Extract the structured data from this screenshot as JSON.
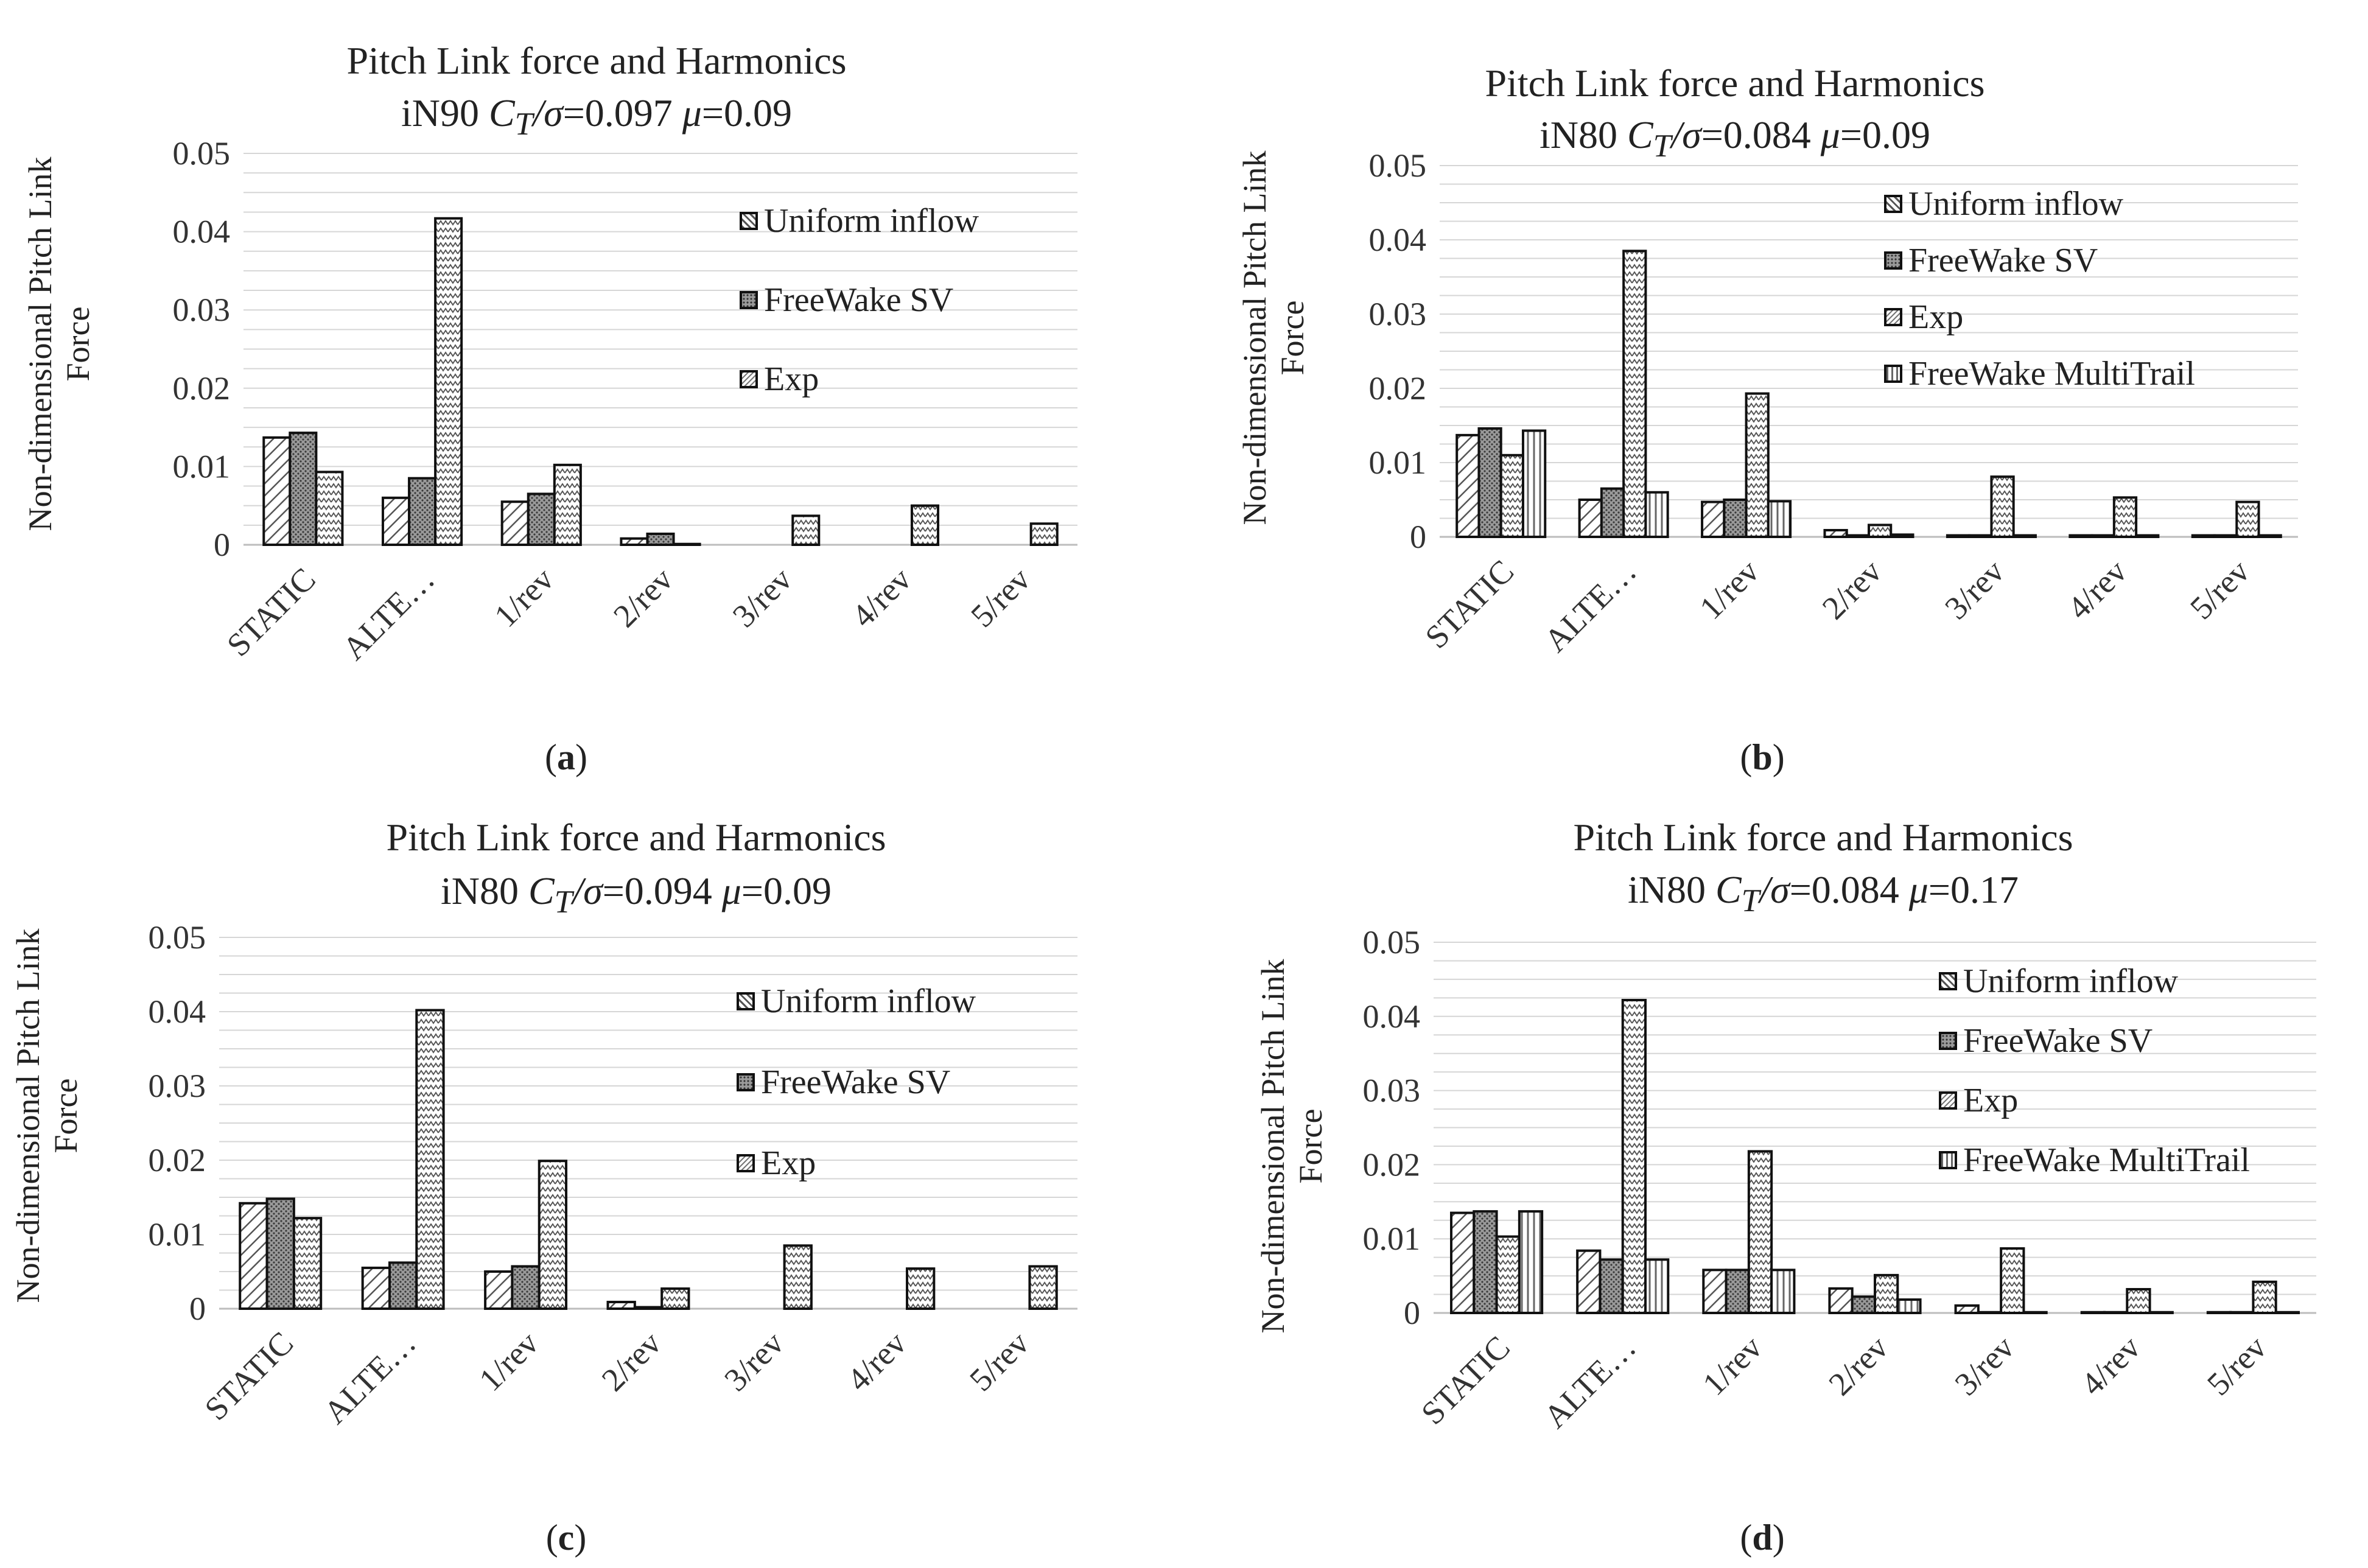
{
  "colors": {
    "grid": "#d6d6d6",
    "axis": "#bdbdbd",
    "bar_stroke": "#111111",
    "text": "#333333"
  },
  "panels": [
    {
      "caption": "a",
      "title": "Pitch Link force and Harmonics",
      "subtitle_pre": "iN90",
      "subtitle_ct": "C",
      "subtitle_sub": "T",
      "subtitle_sigma": "/σ",
      "subtitle_ct_val": "=0.097",
      "subtitle_mu": "μ",
      "subtitle_mu_val": "=0.09",
      "ylabel_line1": "Non-dimensional Pitch Link",
      "ylabel_line2": "Force",
      "legend": [
        "Uniform inflow",
        "FreeWake SV",
        "Exp"
      ]
    },
    {
      "caption": "b",
      "title": "Pitch Link force and Harmonics",
      "subtitle_pre": "iN80",
      "subtitle_ct": "C",
      "subtitle_sub": "T",
      "subtitle_sigma": "/σ",
      "subtitle_ct_val": "=0.084",
      "subtitle_mu": "μ",
      "subtitle_mu_val": "=0.09",
      "ylabel_line1": "Non-dimensional Pitch Link",
      "ylabel_line2": "Force",
      "legend": [
        "Uniform inflow",
        "FreeWake SV",
        "Exp",
        "FreeWake MultiTrail"
      ]
    },
    {
      "caption": "c",
      "title": "Pitch Link force and Harmonics",
      "subtitle_pre": "iN80",
      "subtitle_ct": "C",
      "subtitle_sub": "T",
      "subtitle_sigma": "/σ",
      "subtitle_ct_val": "=0.094",
      "subtitle_mu": "μ",
      "subtitle_mu_val": "=0.09",
      "ylabel_line1": "Non-dimensional Pitch Link",
      "ylabel_line2": "Force",
      "legend": [
        "Uniform inflow",
        "FreeWake SV",
        "Exp"
      ]
    },
    {
      "caption": "d",
      "title": "Pitch Link force and Harmonics",
      "subtitle_pre": "iN80",
      "subtitle_ct": "C",
      "subtitle_sub": "T",
      "subtitle_sigma": "/σ",
      "subtitle_ct_val": "=0.084",
      "subtitle_mu": "μ",
      "subtitle_mu_val": "=0.17",
      "ylabel_line1": "Non-dimensional Pitch Link",
      "ylabel_line2": "Force",
      "legend": [
        "Uniform inflow",
        "FreeWake SV",
        "Exp",
        "FreeWake MultiTrail"
      ]
    }
  ],
  "chart_data": [
    {
      "type": "bar",
      "title": "Pitch Link force and Harmonics — iN90 CT/σ=0.097 μ=0.09",
      "ylabel": "Non-dimensional Pitch Link Force",
      "ylim": [
        0,
        0.05
      ],
      "yticks": [
        "0",
        "0.01",
        "0.02",
        "0.03",
        "0.04",
        "0.05"
      ],
      "categories": [
        "STATIC",
        "ALTE…",
        "1/rev",
        "2/rev",
        "3/rev",
        "4/rev",
        "5/rev"
      ],
      "series": [
        {
          "name": "Uniform inflow",
          "pattern": "diag",
          "values": [
            0.0137,
            0.006,
            0.0055,
            0.0008,
            0.0,
            0.0,
            0.0
          ]
        },
        {
          "name": "FreeWake SV",
          "pattern": "dots",
          "values": [
            0.0143,
            0.0085,
            0.0065,
            0.0014,
            0.0,
            0.0,
            0.0
          ]
        },
        {
          "name": "Exp",
          "pattern": "zigzag",
          "values": [
            0.0093,
            0.0417,
            0.0102,
            0.0001,
            0.0037,
            0.005,
            0.0027
          ]
        }
      ]
    },
    {
      "type": "bar",
      "title": "Pitch Link force and Harmonics — iN80 CT/σ=0.084 μ=0.09",
      "ylabel": "Non-dimensional Pitch Link Force",
      "ylim": [
        0,
        0.05
      ],
      "yticks": [
        "0",
        "0.01",
        "0.02",
        "0.03",
        "0.04",
        "0.05"
      ],
      "categories": [
        "STATIC",
        "ALTE…",
        "1/rev",
        "2/rev",
        "3/rev",
        "4/rev",
        "5/rev"
      ],
      "series": [
        {
          "name": "Uniform inflow",
          "pattern": "diag",
          "values": [
            0.0137,
            0.005,
            0.0047,
            0.0009,
            0.0002,
            0.0002,
            0.0002
          ]
        },
        {
          "name": "FreeWake SV",
          "pattern": "dots",
          "values": [
            0.0146,
            0.0065,
            0.005,
            0.0002,
            0.0002,
            0.0002,
            0.0002
          ]
        },
        {
          "name": "Exp",
          "pattern": "zigzag",
          "values": [
            0.011,
            0.0385,
            0.0193,
            0.0016,
            0.0081,
            0.0053,
            0.0047
          ]
        },
        {
          "name": "FreeWake MultiTrail",
          "pattern": "hatch",
          "values": [
            0.0143,
            0.006,
            0.0048,
            0.0003,
            0.0002,
            0.0002,
            0.0002
          ]
        }
      ]
    },
    {
      "type": "bar",
      "title": "Pitch Link force and Harmonics — iN80 CT/σ=0.094 μ=0.09",
      "ylabel": "Non-dimensional Pitch Link Force",
      "ylim": [
        0,
        0.05
      ],
      "yticks": [
        "0",
        "0.01",
        "0.02",
        "0.03",
        "0.04",
        "0.05"
      ],
      "categories": [
        "STATIC",
        "ALTE…",
        "1/rev",
        "2/rev",
        "3/rev",
        "4/rev",
        "5/rev"
      ],
      "series": [
        {
          "name": "Uniform inflow",
          "pattern": "diag",
          "values": [
            0.0142,
            0.0055,
            0.005,
            0.0009,
            0.0,
            0.0,
            0.0
          ]
        },
        {
          "name": "FreeWake SV",
          "pattern": "dots",
          "values": [
            0.0148,
            0.0062,
            0.0057,
            0.0002,
            0.0,
            0.0,
            0.0
          ]
        },
        {
          "name": "Exp",
          "pattern": "zigzag",
          "values": [
            0.0122,
            0.0402,
            0.0199,
            0.0027,
            0.0085,
            0.0054,
            0.0057
          ]
        }
      ]
    },
    {
      "type": "bar",
      "title": "Pitch Link force and Harmonics — iN80 CT/σ=0.084 μ=0.17",
      "ylabel": "Non-dimensional Pitch Link Force",
      "ylim": [
        0,
        0.05
      ],
      "yticks": [
        "0",
        "0.01",
        "0.02",
        "0.03",
        "0.04",
        "0.05"
      ],
      "categories": [
        "STATIC",
        "ALTE…",
        "1/rev",
        "2/rev",
        "3/rev",
        "4/rev",
        "5/rev"
      ],
      "series": [
        {
          "name": "Uniform inflow",
          "pattern": "diag",
          "values": [
            0.0135,
            0.0084,
            0.0058,
            0.0033,
            0.001,
            0.0001,
            0.0001
          ]
        },
        {
          "name": "FreeWake SV",
          "pattern": "dots",
          "values": [
            0.0137,
            0.0072,
            0.0058,
            0.0022,
            0.0001,
            0.0001,
            0.0001
          ]
        },
        {
          "name": "Exp",
          "pattern": "zigzag",
          "values": [
            0.0103,
            0.0422,
            0.0218,
            0.0051,
            0.0087,
            0.0032,
            0.0042
          ]
        },
        {
          "name": "FreeWake MultiTrail",
          "pattern": "hatch",
          "values": [
            0.0137,
            0.0072,
            0.0058,
            0.0018,
            0.0001,
            0.0001,
            0.0001
          ]
        }
      ]
    }
  ]
}
